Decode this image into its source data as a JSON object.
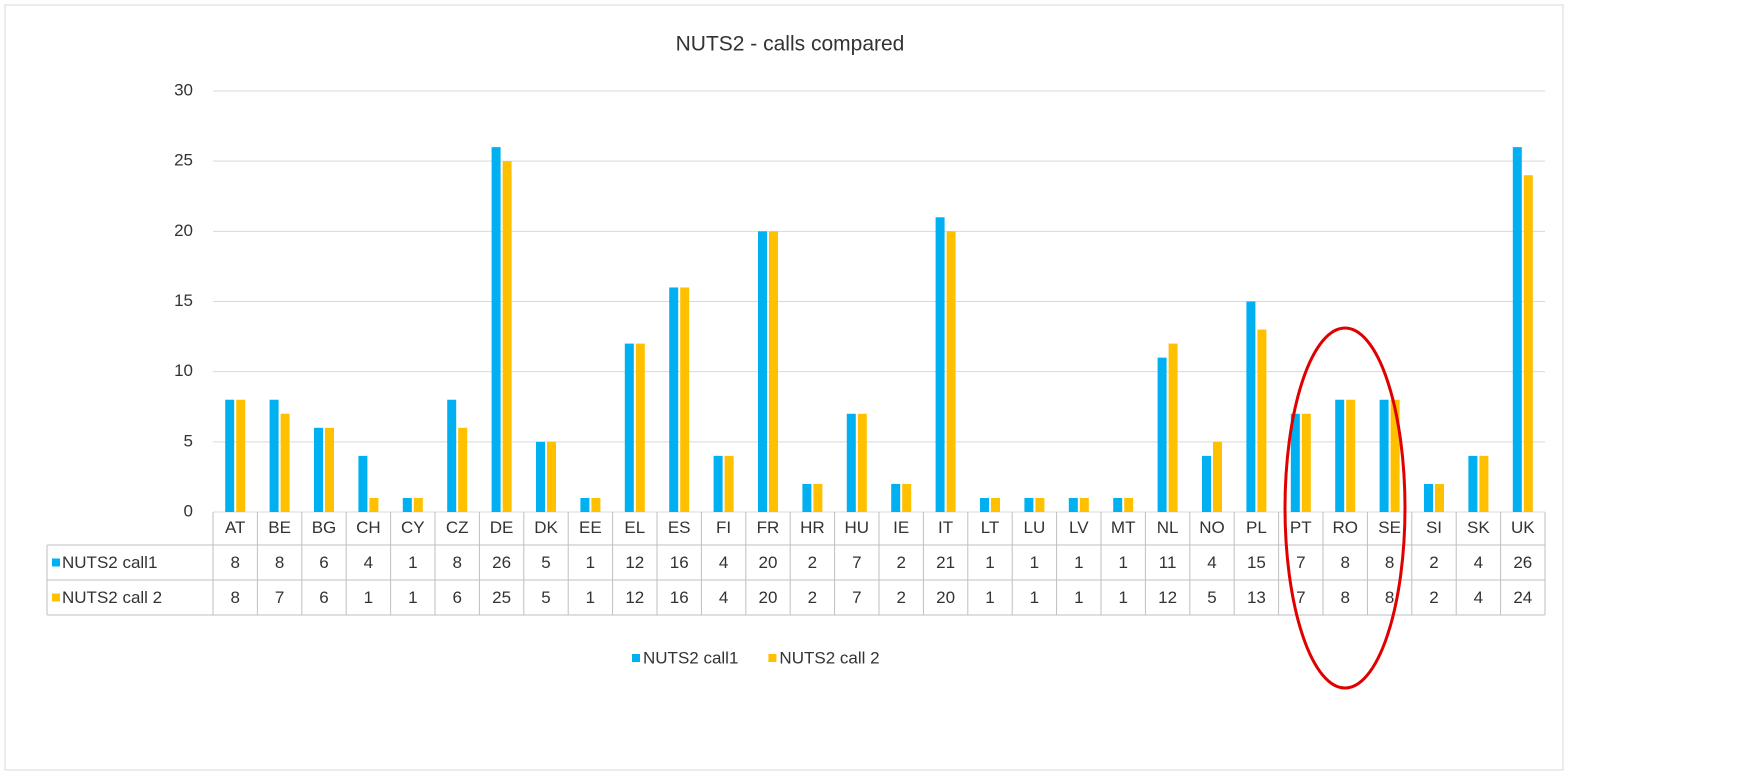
{
  "chart_data": {
    "type": "bar",
    "title": "NUTS2 - calls compared",
    "categories": [
      "AT",
      "BE",
      "BG",
      "CH",
      "CY",
      "CZ",
      "DE",
      "DK",
      "EE",
      "EL",
      "ES",
      "FI",
      "FR",
      "HR",
      "HU",
      "IE",
      "IT",
      "LT",
      "LU",
      "LV",
      "MT",
      "NL",
      "NO",
      "PL",
      "PT",
      "RO",
      "SE",
      "SI",
      "SK",
      "UK"
    ],
    "series": [
      {
        "name": "NUTS2 call1",
        "color": "#00b0f0",
        "values": [
          8,
          8,
          6,
          4,
          1,
          8,
          26,
          5,
          1,
          12,
          16,
          4,
          20,
          2,
          7,
          2,
          21,
          1,
          1,
          1,
          1,
          11,
          4,
          15,
          7,
          8,
          8,
          2,
          4,
          26
        ]
      },
      {
        "name": "NUTS2 call 2",
        "color": "#ffc000",
        "values": [
          8,
          7,
          6,
          1,
          1,
          6,
          25,
          5,
          1,
          12,
          16,
          4,
          20,
          2,
          7,
          2,
          20,
          1,
          1,
          1,
          1,
          12,
          5,
          13,
          7,
          8,
          8,
          2,
          4,
          24
        ]
      }
    ],
    "ylim": [
      0,
      30
    ],
    "yticks": [
      0,
      5,
      10,
      15,
      20,
      25,
      30
    ],
    "grid": true,
    "legend": "bottom",
    "data_table": true
  }
}
